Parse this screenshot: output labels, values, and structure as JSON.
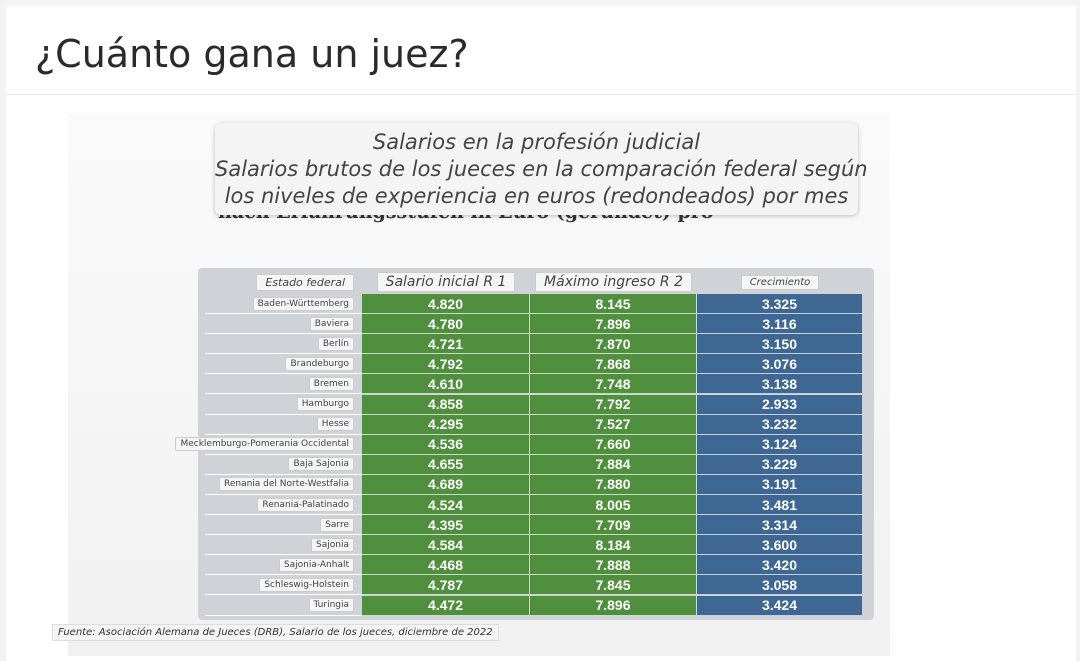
{
  "header": {
    "title": "¿Cuánto gana un juez?"
  },
  "figure": {
    "background_text": "nach Erfahrungsstufen in Euro (gerundet) pro Monat",
    "caption": [
      "Salarios en la profesión judicial",
      "Salarios brutos de los jueces en la comparación federal según",
      "los niveles de experiencia en euros (redondeados) por mes"
    ],
    "table": {
      "columns": [
        "Estado federal",
        "Salario inicial R 1",
        "Máximo ingreso R 2",
        "Crecimiento"
      ],
      "rows": [
        [
          "Baden-Württemberg",
          "4.820",
          "8.145",
          "3.325"
        ],
        [
          "Baviera",
          "4.780",
          "7.896",
          "3.116"
        ],
        [
          "Berlín",
          "4.721",
          "7.870",
          "3.150"
        ],
        [
          "Brandeburgo",
          "4.792",
          "7.868",
          "3.076"
        ],
        [
          "Bremen",
          "4.610",
          "7.748",
          "3.138"
        ],
        [
          "Hamburgo",
          "4.858",
          "7.792",
          "2.933"
        ],
        [
          "Hesse",
          "4.295",
          "7.527",
          "3.232"
        ],
        [
          "Mecklemburgo-Pomerania Occidental",
          "4.536",
          "7.660",
          "3.124"
        ],
        [
          "Baja Sajonia",
          "4.655",
          "7.884",
          "3.229"
        ],
        [
          "Renania del Norte-Westfalia",
          "4.689",
          "7.880",
          "3.191"
        ],
        [
          "Renania-Palatinado",
          "4.524",
          "8.005",
          "3.481"
        ],
        [
          "Sarre",
          "4.395",
          "7.709",
          "3.314"
        ],
        [
          "Sajonia",
          "4.584",
          "8.184",
          "3.600"
        ],
        [
          "Sajonia-Anhalt",
          "4.468",
          "7.888",
          "3.420"
        ],
        [
          "Schleswig-Holstein",
          "4.787",
          "7.845",
          "3.058"
        ],
        [
          "Turingia",
          "4.472",
          "7.896",
          "3.424"
        ]
      ]
    },
    "source": "Fuente: Asociación Alemana de Jueces (DRB), Salario de los jueces, diciembre de 2022"
  }
}
